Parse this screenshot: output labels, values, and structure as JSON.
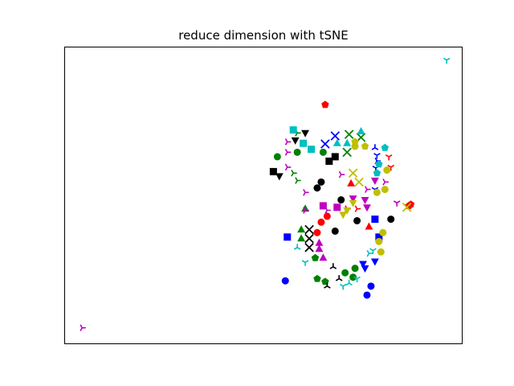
{
  "chart_data": {
    "type": "scatter",
    "title": "reduce dimension with tSNE",
    "xlabel": "",
    "ylabel": "",
    "xlim": [
      0,
      100
    ],
    "ylim": [
      0,
      100
    ],
    "axis_ticks": "hidden",
    "grid": false,
    "legend": "none",
    "series": [
      {
        "color": "#0000ff",
        "points": [
          {
            "x": 65.5,
            "y": 67.3,
            "marker": "x"
          },
          {
            "x": 68.0,
            "y": 70.0,
            "marker": "x"
          },
          {
            "x": 78.2,
            "y": 59.2,
            "marker": "tri_down"
          },
          {
            "x": 78.0,
            "y": 52.0,
            "marker": "tri_down"
          },
          {
            "x": 56.0,
            "y": 36.0,
            "marker": "square"
          },
          {
            "x": 79.0,
            "y": 36.0,
            "marker": "square"
          },
          {
            "x": 78.0,
            "y": 42.0,
            "marker": "square"
          },
          {
            "x": 78.0,
            "y": 27.8,
            "marker": "triangle_down"
          },
          {
            "x": 75.5,
            "y": 25.5,
            "marker": "triangle_down"
          },
          {
            "x": 75.0,
            "y": 27.0,
            "marker": "triangle_down"
          },
          {
            "x": 77.0,
            "y": 19.5,
            "marker": "circle"
          },
          {
            "x": 55.5,
            "y": 21.3,
            "marker": "circle"
          },
          {
            "x": 76.0,
            "y": 16.5,
            "marker": "circle"
          },
          {
            "x": 78.5,
            "y": 61.6,
            "marker": "tri_left"
          },
          {
            "x": 78.0,
            "y": 66.0,
            "marker": "tri_up"
          },
          {
            "x": 78.5,
            "y": 63.5,
            "marker": "tri_down"
          }
        ]
      },
      {
        "color": "#008000",
        "points": [
          {
            "x": 53.5,
            "y": 63.0,
            "marker": "circle"
          },
          {
            "x": 58.5,
            "y": 64.5,
            "marker": "circle"
          },
          {
            "x": 65.0,
            "y": 64.5,
            "marker": "circle"
          },
          {
            "x": 74.5,
            "y": 69.5,
            "marker": "x"
          },
          {
            "x": 71.5,
            "y": 70.5,
            "marker": "x"
          },
          {
            "x": 71.0,
            "y": 64.5,
            "marker": "x"
          },
          {
            "x": 58.5,
            "y": 71.0,
            "marker": "tri_left"
          },
          {
            "x": 60.5,
            "y": 45.5,
            "marker": "triangle_up"
          },
          {
            "x": 59.5,
            "y": 38.5,
            "marker": "triangle_up"
          },
          {
            "x": 59.5,
            "y": 35.5,
            "marker": "triangle_up"
          },
          {
            "x": 63.0,
            "y": 29.0,
            "marker": "pentagon"
          },
          {
            "x": 65.5,
            "y": 21.0,
            "marker": "pentagon"
          },
          {
            "x": 63.5,
            "y": 22.0,
            "marker": "pentagon"
          },
          {
            "x": 70.5,
            "y": 24.0,
            "marker": "circle"
          },
          {
            "x": 73.0,
            "y": 25.5,
            "marker": "circle"
          },
          {
            "x": 72.5,
            "y": 22.5,
            "marker": "circle"
          },
          {
            "x": 58.5,
            "y": 55.0,
            "marker": "tri_left"
          },
          {
            "x": 57.5,
            "y": 57.5,
            "marker": "tri_left"
          }
        ]
      },
      {
        "color": "#ff0000",
        "points": [
          {
            "x": 65.5,
            "y": 80.5,
            "marker": "pentagon"
          },
          {
            "x": 87.0,
            "y": 47.0,
            "marker": "pentagon"
          },
          {
            "x": 86.5,
            "y": 46.5,
            "marker": "pentagon"
          },
          {
            "x": 72.0,
            "y": 54.0,
            "marker": "triangle_up"
          },
          {
            "x": 76.5,
            "y": 39.5,
            "marker": "triangle_up"
          },
          {
            "x": 64.5,
            "y": 41.0,
            "marker": "circle"
          },
          {
            "x": 66.0,
            "y": 43.0,
            "marker": "circle"
          },
          {
            "x": 63.5,
            "y": 37.5,
            "marker": "circle"
          },
          {
            "x": 81.5,
            "y": 63.0,
            "marker": "tri_down"
          },
          {
            "x": 82.0,
            "y": 59.5,
            "marker": "tri_down"
          },
          {
            "x": 71.0,
            "y": 45.5,
            "marker": "tri_left"
          },
          {
            "x": 73.5,
            "y": 45.5,
            "marker": "tri_left"
          }
        ]
      },
      {
        "color": "#00bfbf",
        "points": [
          {
            "x": 57.5,
            "y": 72.0,
            "marker": "square"
          },
          {
            "x": 60.0,
            "y": 67.5,
            "marker": "square"
          },
          {
            "x": 62.0,
            "y": 65.5,
            "marker": "square"
          },
          {
            "x": 68.5,
            "y": 67.5,
            "marker": "triangle_up"
          },
          {
            "x": 71.0,
            "y": 67.5,
            "marker": "triangle_up"
          },
          {
            "x": 74.5,
            "y": 71.5,
            "marker": "triangle_up"
          },
          {
            "x": 80.5,
            "y": 66.0,
            "marker": "pentagon"
          },
          {
            "x": 79.0,
            "y": 60.5,
            "marker": "pentagon"
          },
          {
            "x": 78.5,
            "y": 57.5,
            "marker": "pentagon"
          },
          {
            "x": 96.0,
            "y": 95.5,
            "marker": "tri_down"
          },
          {
            "x": 58.5,
            "y": 32.5,
            "marker": "tri_up"
          },
          {
            "x": 60.5,
            "y": 27.5,
            "marker": "tri_down"
          },
          {
            "x": 77.5,
            "y": 31.5,
            "marker": "tri_down"
          },
          {
            "x": 70.0,
            "y": 19.5,
            "marker": "tri_down"
          },
          {
            "x": 71.5,
            "y": 20.5,
            "marker": "tri_up"
          },
          {
            "x": 76.5,
            "y": 30.5,
            "marker": "tri_left"
          },
          {
            "x": 73.5,
            "y": 22.0,
            "marker": "tri_down"
          }
        ]
      },
      {
        "color": "#bf00bf",
        "points": [
          {
            "x": 56.0,
            "y": 68.0,
            "marker": "tri_left"
          },
          {
            "x": 56.0,
            "y": 64.5,
            "marker": "tri_left"
          },
          {
            "x": 56.0,
            "y": 59.5,
            "marker": "tri_left"
          },
          {
            "x": 60.5,
            "y": 51.0,
            "marker": "tri_left"
          },
          {
            "x": 69.5,
            "y": 57.0,
            "marker": "tri_left"
          },
          {
            "x": 80.5,
            "y": 54.5,
            "marker": "tri_left"
          },
          {
            "x": 60.5,
            "y": 45.0,
            "marker": "tri_left"
          },
          {
            "x": 66.0,
            "y": 45.0,
            "marker": "tri_left"
          },
          {
            "x": 4.5,
            "y": 5.5,
            "marker": "tri_left"
          },
          {
            "x": 65.0,
            "y": 46.5,
            "marker": "square"
          },
          {
            "x": 68.5,
            "y": 46.0,
            "marker": "square"
          },
          {
            "x": 76.0,
            "y": 46.0,
            "marker": "triangle_down"
          },
          {
            "x": 75.5,
            "y": 48.5,
            "marker": "triangle_down"
          },
          {
            "x": 72.5,
            "y": 49.0,
            "marker": "triangle_down"
          },
          {
            "x": 78.0,
            "y": 55.0,
            "marker": "triangle_down"
          },
          {
            "x": 64.0,
            "y": 34.0,
            "marker": "triangle_up"
          },
          {
            "x": 64.0,
            "y": 32.0,
            "marker": "triangle_up"
          },
          {
            "x": 65.0,
            "y": 29.0,
            "marker": "triangle_up"
          },
          {
            "x": 83.5,
            "y": 47.5,
            "marker": "tri_down"
          },
          {
            "x": 76.0,
            "y": 52.0,
            "marker": "tri_left"
          }
        ]
      },
      {
        "color": "#bfbf00",
        "points": [
          {
            "x": 73.0,
            "y": 68.0,
            "marker": "pentagon"
          },
          {
            "x": 75.5,
            "y": 66.5,
            "marker": "pentagon"
          },
          {
            "x": 73.0,
            "y": 66.5,
            "marker": "circle"
          },
          {
            "x": 81.0,
            "y": 58.5,
            "marker": "circle"
          },
          {
            "x": 80.5,
            "y": 52.0,
            "marker": "circle"
          },
          {
            "x": 78.5,
            "y": 51.0,
            "marker": "circle"
          },
          {
            "x": 72.5,
            "y": 57.5,
            "marker": "x"
          },
          {
            "x": 74.0,
            "y": 54.5,
            "marker": "x"
          },
          {
            "x": 86.0,
            "y": 46.0,
            "marker": "x"
          },
          {
            "x": 71.0,
            "y": 45.0,
            "marker": "triangle_down"
          },
          {
            "x": 72.5,
            "y": 47.5,
            "marker": "triangle_down"
          },
          {
            "x": 70.0,
            "y": 43.5,
            "marker": "triangle_down"
          },
          {
            "x": 80.0,
            "y": 37.5,
            "marker": "circle"
          },
          {
            "x": 79.0,
            "y": 34.5,
            "marker": "circle"
          },
          {
            "x": 79.5,
            "y": 31.0,
            "marker": "circle"
          }
        ]
      },
      {
        "color": "#000000",
        "points": [
          {
            "x": 60.5,
            "y": 71.0,
            "marker": "triangle_down"
          },
          {
            "x": 58.0,
            "y": 68.5,
            "marker": "triangle_down"
          },
          {
            "x": 54.0,
            "y": 56.5,
            "marker": "triangle_down"
          },
          {
            "x": 52.5,
            "y": 58.0,
            "marker": "square"
          },
          {
            "x": 66.5,
            "y": 61.5,
            "marker": "square"
          },
          {
            "x": 68.0,
            "y": 63.0,
            "marker": "square"
          },
          {
            "x": 64.5,
            "y": 54.5,
            "marker": "circle"
          },
          {
            "x": 63.5,
            "y": 52.5,
            "marker": "circle"
          },
          {
            "x": 69.5,
            "y": 48.5,
            "marker": "circle"
          },
          {
            "x": 73.5,
            "y": 41.5,
            "marker": "circle"
          },
          {
            "x": 82.0,
            "y": 42.0,
            "marker": "circle"
          },
          {
            "x": 68.0,
            "y": 38.0,
            "marker": "circle"
          },
          {
            "x": 61.5,
            "y": 38.5,
            "marker": "x"
          },
          {
            "x": 61.5,
            "y": 35.5,
            "marker": "x"
          },
          {
            "x": 61.5,
            "y": 32.5,
            "marker": "x"
          },
          {
            "x": 67.5,
            "y": 26.0,
            "marker": "tri_up"
          },
          {
            "x": 66.0,
            "y": 19.5,
            "marker": "tri_up"
          },
          {
            "x": 69.0,
            "y": 22.0,
            "marker": "tri_up"
          }
        ]
      }
    ]
  }
}
